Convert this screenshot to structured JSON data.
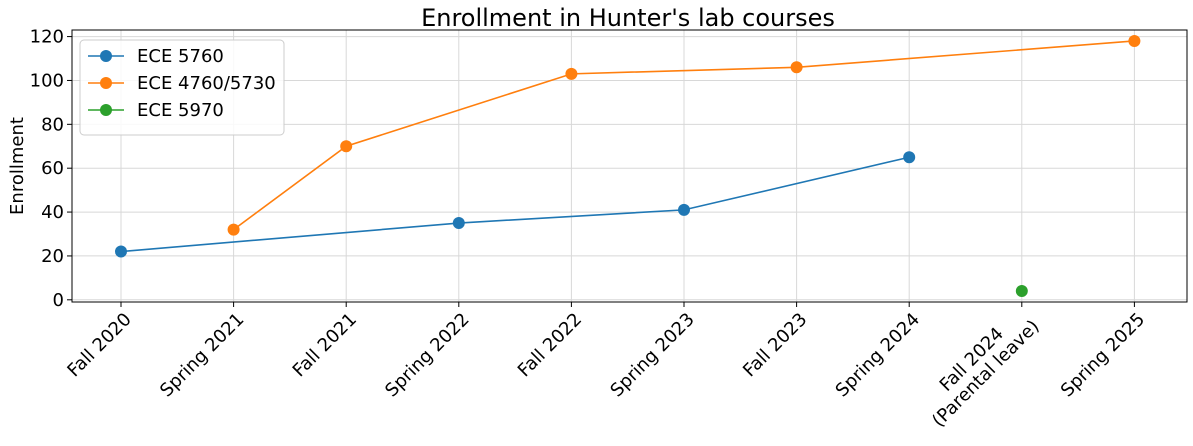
{
  "chart_data": {
    "type": "line",
    "title": "Enrollment in Hunter's lab courses",
    "xlabel": "",
    "ylabel": "Enrollment",
    "categories": [
      [
        "Fall 2020"
      ],
      [
        "Spring 2021"
      ],
      [
        "Fall 2021"
      ],
      [
        "Spring 2022"
      ],
      [
        "Fall 2022"
      ],
      [
        "Spring 2023"
      ],
      [
        "Fall 2023"
      ],
      [
        "Spring 2024"
      ],
      [
        "Fall 2024",
        "(Parental leave)"
      ],
      [
        "Spring 2025"
      ]
    ],
    "ylim": [
      -1,
      123
    ],
    "yticks": [
      0,
      20,
      40,
      60,
      80,
      100,
      120
    ],
    "grid": true,
    "legend_position": "top-left",
    "series": [
      {
        "name": "ECE 5760",
        "color": "#1f77b4",
        "points": [
          [
            0,
            22
          ],
          [
            3,
            35
          ],
          [
            5,
            41
          ],
          [
            7,
            65
          ]
        ]
      },
      {
        "name": "ECE 4760/5730",
        "color": "#ff7f0e",
        "points": [
          [
            1,
            32
          ],
          [
            2,
            70
          ],
          [
            4,
            103
          ],
          [
            6,
            106
          ],
          [
            9,
            118
          ]
        ]
      },
      {
        "name": "ECE 5970",
        "color": "#2ca02c",
        "points": [
          [
            8,
            4
          ]
        ]
      }
    ]
  }
}
